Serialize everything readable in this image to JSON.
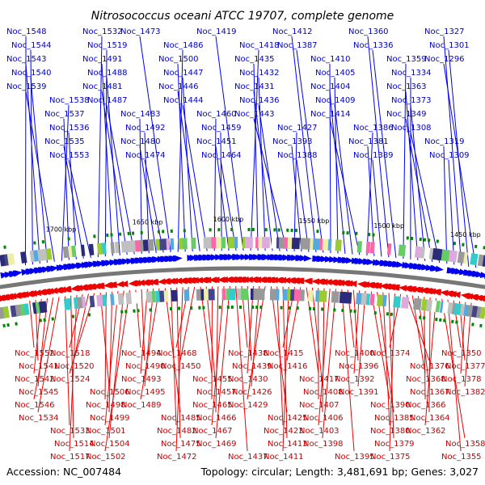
{
  "title": "Nitrosococcus oceani ATCC 19707, complete genome",
  "footer": {
    "accession": "Accession: NC_007484",
    "summary": "Topology: circular; Length: 3,481,691 bp; Genes: 3,027"
  },
  "colors": {
    "forward": "#0000ee",
    "reverse": "#ee0000",
    "backbone": "#777777",
    "gc_marker": "#008800"
  },
  "kbp_ticks": [
    "1450 kbp",
    "1500 kbp",
    "1550 kbp",
    "1600 kbp",
    "1650 kbp",
    "1700 kbp"
  ],
  "forward_labels": [
    "Noc_1548",
    "Noc_1544",
    "Noc_1543",
    "Noc_1540",
    "Noc_1539",
    "Noc_1538",
    "Noc_1537",
    "Noc_1536",
    "Noc_1535",
    "Noc_1553",
    "Noc_1532",
    "Noc_1519",
    "Noc_1491",
    "Noc_1488",
    "Noc_1481",
    "Noc_1487",
    "Noc_1483",
    "Noc_1492",
    "Noc_1480",
    "Noc_1474",
    "Noc_1473",
    "Noc_1486",
    "Noc_1500",
    "Noc_1447",
    "Noc_1446",
    "Noc_1444",
    "Noc_1460",
    "Noc_1459",
    "Noc_1451",
    "Noc_1464",
    "Noc_1419",
    "Noc_1418",
    "Noc_1435",
    "Noc_1432",
    "Noc_1431",
    "Noc_1436",
    "Noc_1443",
    "Noc_1427",
    "Noc_1393",
    "Noc_1388",
    "Noc_1412",
    "Noc_1387",
    "Noc_1410",
    "Noc_1405",
    "Noc_1404",
    "Noc_1409",
    "Noc_1414",
    "Noc_1386",
    "Noc_1381",
    "Noc_1389",
    "Noc_1360",
    "Noc_1336",
    "Noc_1359",
    "Noc_1334",
    "Noc_1363",
    "Noc_1373",
    "Noc_1349",
    "Noc_1308",
    "Noc_1319",
    "Noc_1309",
    "Noc_1327",
    "Noc_1301",
    "Noc_1296"
  ],
  "reverse_labels": [
    "Noc_1552",
    "Noc_1541",
    "Noc_1542",
    "Noc_1545",
    "Noc_1546",
    "Noc_1534",
    "Noc_1533",
    "Noc_1514",
    "Noc_1517",
    "Noc_1518",
    "Noc_1520",
    "Noc_1524",
    "Noc_1506",
    "Noc_1498",
    "Noc_1499",
    "Noc_1501",
    "Noc_1504",
    "Noc_1502",
    "Noc_1494",
    "Noc_1490",
    "Noc_1493",
    "Noc_1495",
    "Noc_1489",
    "Noc_1485",
    "Noc_1482",
    "Noc_1475",
    "Noc_1472",
    "Noc_1468",
    "Noc_1450",
    "Noc_1455",
    "Noc_1457",
    "Noc_1465",
    "Noc_1466",
    "Noc_1467",
    "Noc_1469",
    "Noc_1437",
    "Noc_1438",
    "Noc_1439",
    "Noc_1430",
    "Noc_1426",
    "Noc_1429",
    "Noc_1425",
    "Noc_1423",
    "Noc_1413",
    "Noc_1411",
    "Noc_1415",
    "Noc_1416",
    "Noc_1417",
    "Noc_1408",
    "Noc_1407",
    "Noc_1406",
    "Noc_1403",
    "Noc_1398",
    "Noc_1395",
    "Noc_1400",
    "Noc_1396",
    "Noc_1392",
    "Noc_1391",
    "Noc_1390",
    "Noc_1385",
    "Noc_1380",
    "Noc_1379",
    "Noc_1375",
    "Noc_1374",
    "Noc_1376",
    "Noc_1368",
    "Noc_1367",
    "Noc_1366",
    "Noc_1364",
    "Noc_1362",
    "Noc_1358",
    "Noc_1355",
    "Noc_1350",
    "Noc_1377",
    "Noc_1378",
    "Noc_1382"
  ]
}
